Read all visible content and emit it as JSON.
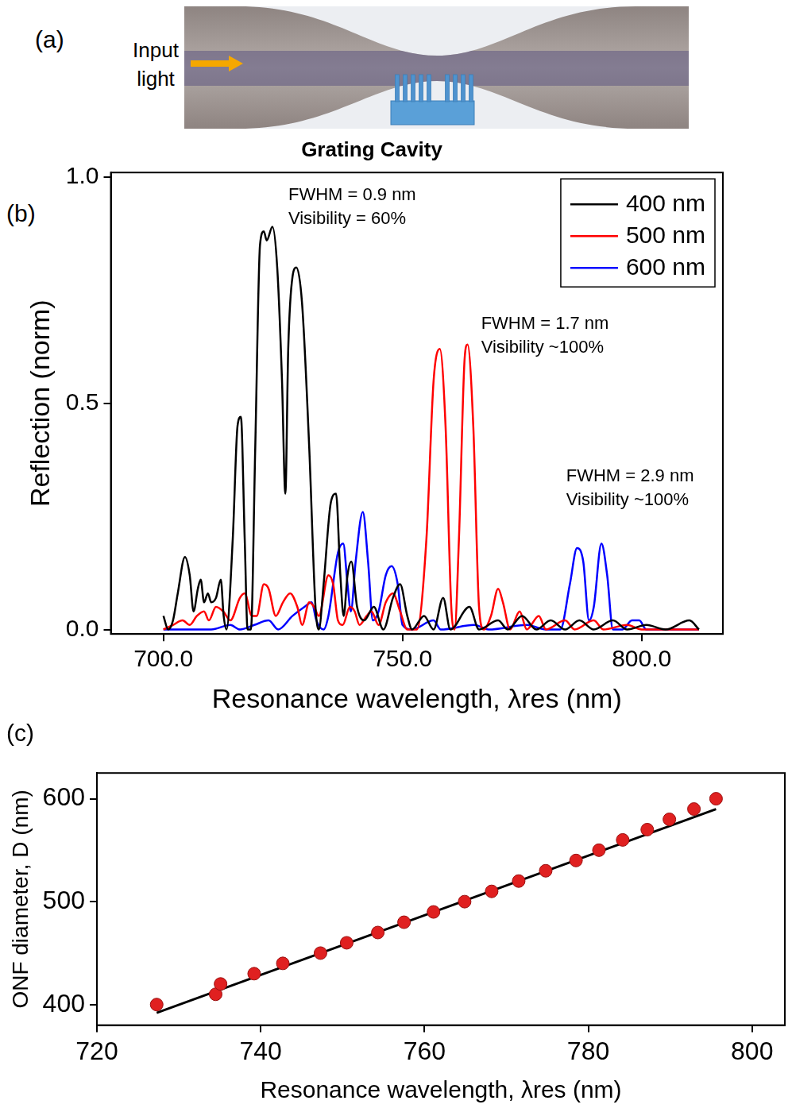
{
  "diagram": {
    "panel": "(a)",
    "input_label": "Input light"
  },
  "chart_data": [
    {
      "panel": "(b)",
      "type": "line",
      "title": "Grating Cavity",
      "x_label": "Resonance wavelength, λres (nm)",
      "y_label": "Reflection (norm)",
      "xlim": [
        689,
        817
      ],
      "ylim": [
        -0.01,
        1.01
      ],
      "xticks": [
        {
          "value": 700,
          "label": "700.0"
        },
        {
          "value": 750,
          "label": "750.0"
        },
        {
          "value": 800,
          "label": "800.0"
        }
      ],
      "yticks": [
        {
          "value": 0,
          "label": "0.0"
        },
        {
          "value": 0.5,
          "label": "0.5"
        },
        {
          "value": 1,
          "label": "1.0"
        }
      ],
      "grid": false,
      "legend": "upper right",
      "annotations": [
        {
          "lines": [
            "FWHM = 0.9 nm",
            "Visibility = 60%"
          ]
        },
        {
          "lines": [
            "FWHM = 1.7 nm",
            "Visibility ~100%"
          ]
        },
        {
          "lines": [
            "FWHM = 2.9 nm",
            "Visibility ~100%"
          ]
        }
      ],
      "series": [
        {
          "name": "400 nm",
          "color": "#000000",
          "x": [
            700,
            701,
            702,
            703,
            704.5,
            705.5,
            706.3,
            707.2,
            707.8,
            708.5,
            709.3,
            710,
            711,
            712,
            712.6,
            713.2,
            714.5,
            715.5,
            716.2,
            717,
            717.6,
            718.3,
            719.2,
            720.2,
            721,
            721.6,
            722.8,
            723.8,
            724.8,
            725.5,
            726.1,
            727,
            727.8,
            729,
            730.5,
            731.8,
            732.5,
            733.5,
            735,
            736.1,
            737,
            737.7,
            738.5,
            739.3,
            740.5,
            742,
            744,
            746,
            748,
            749.5,
            751,
            752,
            754.5,
            756.5,
            758.5,
            760,
            764,
            766,
            770,
            772,
            775,
            778,
            781,
            784,
            787,
            790,
            794,
            797,
            801,
            805,
            810,
            812
          ],
          "values": [
            0.03,
            0,
            0.02,
            0.08,
            0.16,
            0.12,
            0.04,
            0.09,
            0.11,
            0.06,
            0.08,
            0.06,
            0.07,
            0.11,
            0.03,
            0,
            0.2,
            0.45,
            0.47,
            0.2,
            0,
            0,
            0.4,
            0.85,
            0.88,
            0.86,
            0.89,
            0.8,
            0.55,
            0.3,
            0.62,
            0.78,
            0.8,
            0.72,
            0.4,
            0.05,
            0,
            0.1,
            0.28,
            0.3,
            0.12,
            0.03,
            0.12,
            0.15,
            0.05,
            0.02,
            0.05,
            0,
            0.07,
            0.1,
            0.03,
            0,
            0.03,
            0,
            0.07,
            0,
            0.05,
            0,
            0.02,
            0,
            0.03,
            0,
            0.02,
            0,
            0.02,
            0,
            0.02,
            0,
            0.01,
            0,
            0.02,
            0
          ]
        },
        {
          "name": "500 nm",
          "color": "#ff0000",
          "x": [
            700,
            702,
            704,
            705.5,
            707,
            708.5,
            709.5,
            711,
            712.5,
            714,
            716,
            717,
            718.5,
            719.5,
            721,
            722,
            723.5,
            725,
            726.5,
            728,
            729,
            730.5,
            731.5,
            732.5,
            734.5,
            735.5,
            736.5,
            737.5,
            739,
            740,
            741,
            742.5,
            743.5,
            745,
            746.5,
            748,
            749.5,
            751,
            753,
            755,
            756.5,
            757.8,
            759,
            760.2,
            760.9,
            761.8,
            763,
            763.6,
            764.8,
            766,
            767,
            768.5,
            770,
            771,
            772.5,
            774.5,
            776,
            778.5,
            780,
            784,
            786,
            790,
            792,
            797,
            800,
            812
          ],
          "values": [
            0,
            0.01,
            0.02,
            0.01,
            0.03,
            0.04,
            0.02,
            0.05,
            0.04,
            0.02,
            0.07,
            0.08,
            0.03,
            0.03,
            0.1,
            0.09,
            0.03,
            0.06,
            0.08,
            0.05,
            0.01,
            0.06,
            0.05,
            0.03,
            0.12,
            0.1,
            0.02,
            0.01,
            0.05,
            0.04,
            0.01,
            0.03,
            0.04,
            0.01,
            0.06,
            0.08,
            0.04,
            0,
            0,
            0.2,
            0.55,
            0.62,
            0.45,
            0.05,
            0,
            0.2,
            0.6,
            0.63,
            0.45,
            0.05,
            0,
            0.03,
            0.09,
            0.06,
            0,
            0.04,
            0,
            0.03,
            0,
            0.02,
            0,
            0.02,
            0,
            0.01,
            0,
            0
          ]
        },
        {
          "name": "600 nm",
          "color": "#0000ff",
          "x": [
            700,
            710,
            714,
            716,
            719,
            722,
            724,
            727,
            729.5,
            731,
            732,
            733.5,
            734.5,
            736.5,
            737.6,
            738.5,
            739.2,
            740.2,
            741.7,
            742.8,
            743.8,
            745,
            746.5,
            747.7,
            749,
            750,
            752,
            756.5,
            758,
            765,
            768,
            776,
            780,
            783,
            785,
            786.5,
            787.8,
            789,
            790,
            791.6,
            792.8,
            794,
            796,
            798,
            799.5,
            801,
            805,
            812
          ],
          "values": [
            0,
            0,
            0.01,
            0,
            0.01,
            0.02,
            0,
            0.03,
            0.05,
            0.06,
            0.02,
            0,
            0.03,
            0.17,
            0.19,
            0.1,
            0.04,
            0.15,
            0.26,
            0.15,
            0.02,
            0.04,
            0.12,
            0.14,
            0.1,
            0.01,
            0,
            0.02,
            0,
            0.01,
            0,
            0.01,
            0,
            0,
            0.1,
            0.18,
            0.15,
            0.02,
            0.05,
            0.19,
            0.12,
            0,
            0,
            0.02,
            0.02,
            0,
            0,
            0
          ]
        }
      ]
    },
    {
      "panel": "(c)",
      "type": "scatter",
      "x_label": "Resonance wavelength, λres (nm)",
      "y_label": "ONF diameter, D (nm)",
      "xlim": [
        720,
        804
      ],
      "ylim": [
        380,
        625
      ],
      "xticks": [
        720,
        740,
        760,
        780,
        800
      ],
      "yticks": [
        400,
        500,
        600
      ],
      "grid": false,
      "series": [
        {
          "type": "scatter",
          "color": "#e02020",
          "marker": "circle",
          "x": [
            727.3,
            734.5,
            735.1,
            739.2,
            742.7,
            747.3,
            750.5,
            754.3,
            757.5,
            761.1,
            764.9,
            768.2,
            771.5,
            774.8,
            778.5,
            781.3,
            784.2,
            787.2,
            789.9,
            792.9,
            795.6
          ],
          "values": [
            400,
            410,
            420,
            430,
            440,
            450,
            460,
            470,
            480,
            490,
            500,
            510,
            520,
            530,
            540,
            550,
            560,
            570,
            580,
            590,
            600
          ]
        },
        {
          "type": "line",
          "color": "#000000",
          "line_style": "solid",
          "x": [
            727.3,
            795.6
          ],
          "values": [
            392,
            590
          ]
        }
      ]
    }
  ]
}
